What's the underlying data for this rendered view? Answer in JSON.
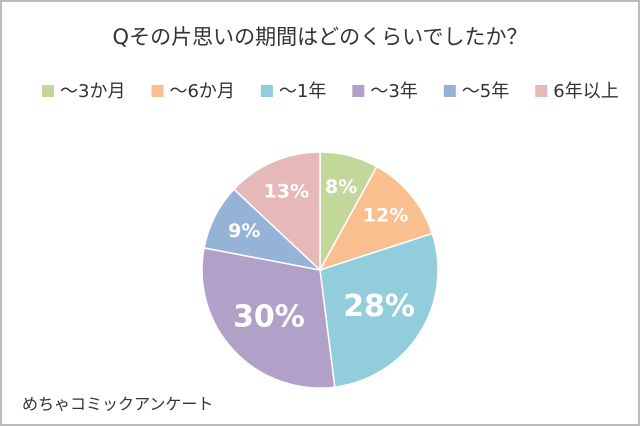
{
  "chart_data": {
    "type": "pie",
    "title": "Qその片思いの期間はどのくらいでしたか？",
    "categories": [
      "～3か月",
      "～6か月",
      "～1年",
      "～3年",
      "～5年",
      "6年以上"
    ],
    "values": [
      8,
      12,
      28,
      30,
      9,
      13
    ],
    "value_labels": [
      "8%",
      "12%",
      "28%",
      "30%",
      "9%",
      "13%"
    ],
    "colors": [
      "#c4d79b",
      "#fabf8f",
      "#92cddc",
      "#b1a0c7",
      "#95b3d7",
      "#e6b8b7"
    ],
    "legend": "top",
    "source": "めちゃコミックアンケート"
  }
}
